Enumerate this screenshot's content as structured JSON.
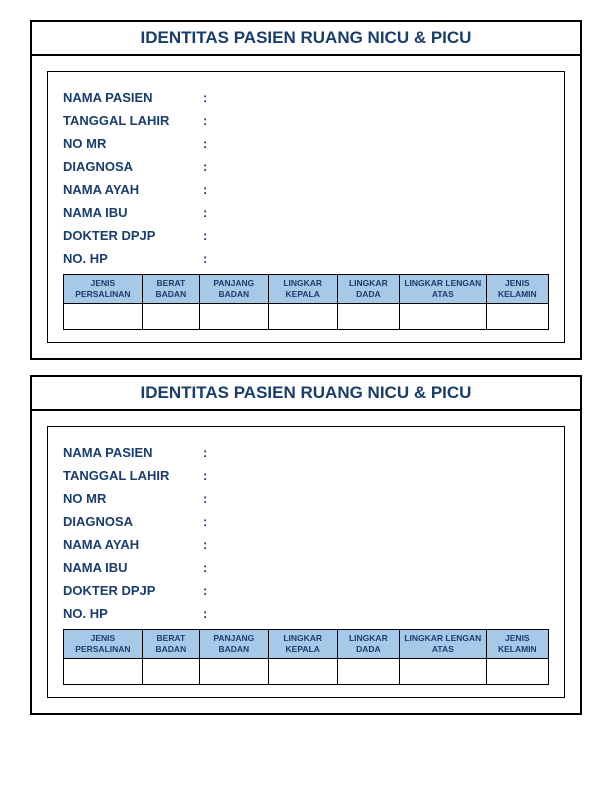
{
  "form": {
    "title": "IDENTITAS PASIEN RUANG NICU & PICU",
    "title_color": "#1a3d6d",
    "title_fontsize": 17,
    "fields": [
      {
        "label": "NAMA PASIEN",
        "value": ""
      },
      {
        "label": "TANGGAL LAHIR",
        "value": ""
      },
      {
        "label": "NO MR",
        "value": ""
      },
      {
        "label": "DIAGNOSA",
        "value": ""
      },
      {
        "label": "NAMA AYAH",
        "value": ""
      },
      {
        "label": "NAMA IBU",
        "value": ""
      },
      {
        "label": "DOKTER DPJP",
        "value": ""
      },
      {
        "label": "NO. HP",
        "value": ""
      }
    ],
    "field_color": "#1a3d6d",
    "field_fontsize": 13,
    "table": {
      "columns": [
        "JENIS PERSALINAN",
        "BERAT BADAN",
        "PANJANG BADAN",
        "LINGKAR KEPALA",
        "LINGKAR DADA",
        "LINGKAR LENGAN ATAS",
        "JENIS KELAMIN"
      ],
      "header_bg": "#a8c8e8",
      "header_color": "#1a3d6d",
      "header_fontsize": 8.5,
      "border_color": "#000000",
      "rows": [
        [
          "",
          "",
          "",
          "",
          "",
          "",
          ""
        ]
      ]
    }
  },
  "layout": {
    "copies": 2,
    "page_bg": "#ffffff",
    "card_border": "#000000"
  }
}
